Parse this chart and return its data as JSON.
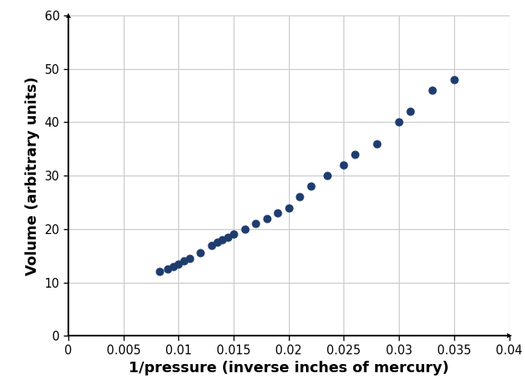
{
  "x": [
    0.0083,
    0.009,
    0.0095,
    0.01,
    0.0105,
    0.011,
    0.012,
    0.013,
    0.0135,
    0.014,
    0.0145,
    0.015,
    0.016,
    0.017,
    0.018,
    0.019,
    0.02,
    0.021,
    0.022,
    0.0235,
    0.025,
    0.026,
    0.028,
    0.03,
    0.031,
    0.033,
    0.035
  ],
  "y": [
    12,
    12.5,
    13,
    13.5,
    14,
    14.5,
    15.5,
    17,
    17.5,
    18,
    18.5,
    19,
    20,
    21,
    22,
    23,
    24,
    26,
    28,
    30,
    32,
    34,
    36,
    40,
    42,
    46,
    48
  ],
  "dot_color": "#1e3d6e",
  "dot_size": 40,
  "xlabel": "1/pressure (inverse inches of mercury)",
  "ylabel": "Volume (arbitrary units)",
  "xlim": [
    0,
    0.04
  ],
  "ylim": [
    0,
    60
  ],
  "xticks": [
    0,
    0.005,
    0.01,
    0.015,
    0.02,
    0.025,
    0.03,
    0.035,
    0.04
  ],
  "yticks": [
    0,
    10,
    20,
    30,
    40,
    50,
    60
  ],
  "label_fontsize": 13,
  "tick_fontsize": 10.5
}
